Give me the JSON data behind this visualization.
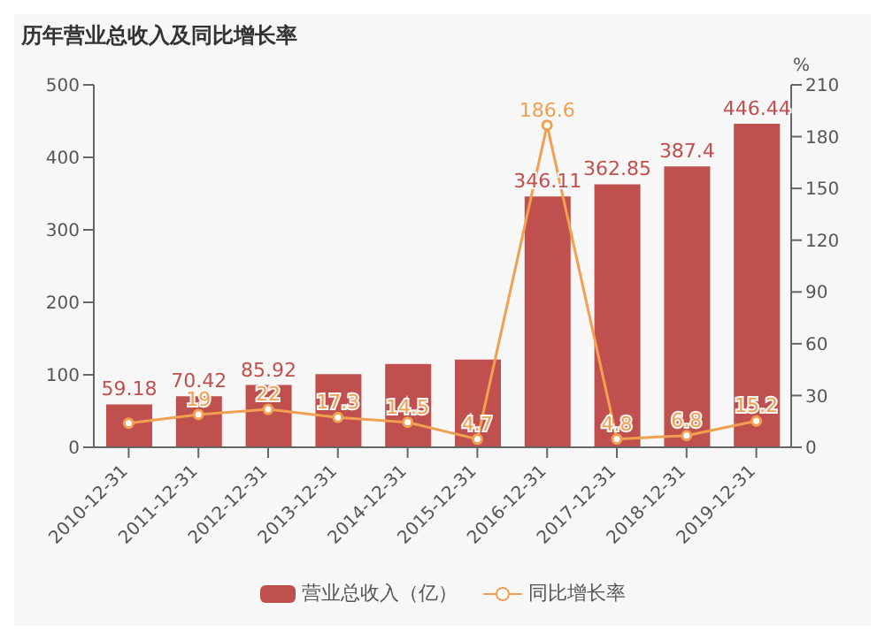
{
  "chart_data": {
    "type": "bar",
    "title": "历年营业总收入及同比增长率",
    "y2label": "%",
    "categories": [
      "2010-12-31",
      "2011-12-31",
      "2012-12-31",
      "2013-12-31",
      "2014-12-31",
      "2015-12-31",
      "2016-12-31",
      "2017-12-31",
      "2018-12-31",
      "2019-12-31"
    ],
    "series": [
      {
        "name": "营业总收入（亿）",
        "color": "#c0504d",
        "values": [
          59.18,
          70.42,
          85.92,
          101,
          115,
          121,
          346.11,
          362.85,
          387.4,
          446.44
        ],
        "value_labels": [
          "59.18",
          "70.42",
          "85.92",
          null,
          null,
          null,
          "346.11",
          "362.85",
          "387.4",
          "446.44"
        ]
      },
      {
        "name": "同比增长率",
        "type": "line",
        "axis": "y2",
        "color": "#f0a050",
        "values": [
          14,
          19,
          22,
          17.3,
          14.5,
          4.7,
          186.6,
          4.8,
          6.8,
          15.2
        ],
        "value_labels": [
          null,
          "19",
          "22",
          "17.3",
          "14.5",
          "4.7",
          "186.6",
          "4.8",
          "6.8",
          "15.2"
        ]
      }
    ],
    "ylim": [
      0,
      500
    ],
    "yticks": [
      0,
      100,
      200,
      300,
      400,
      500
    ],
    "y2lim": [
      0,
      210
    ],
    "y2ticks": [
      0,
      30,
      60,
      90,
      120,
      150,
      180,
      210
    ],
    "grid": false,
    "legend": "bottom",
    "marker": "circle",
    "line_style": "solid"
  }
}
